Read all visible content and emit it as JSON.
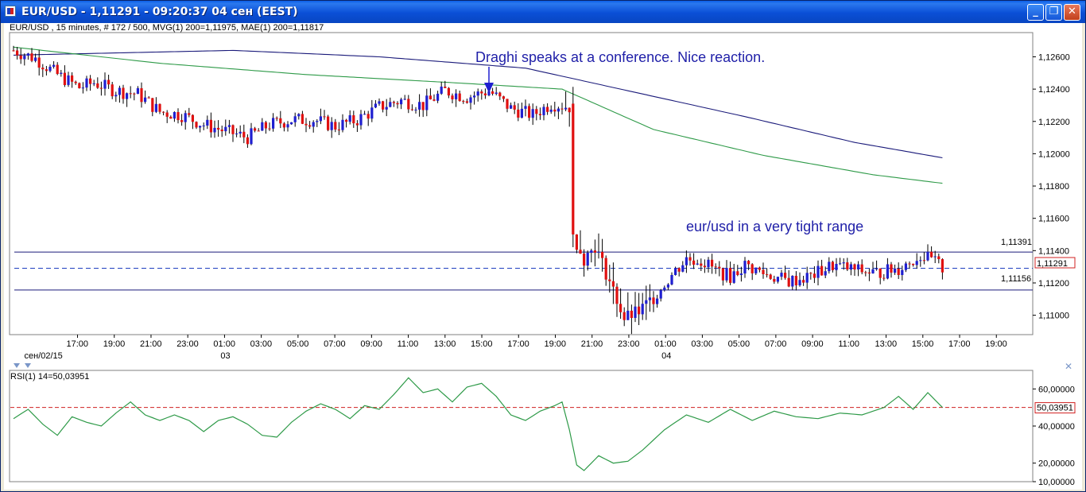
{
  "window": {
    "title": "EUR/USD - 1,11291 - 09:20:37  04 сен (EEST)",
    "buttons": {
      "minimize": "_",
      "maximize": "❐",
      "close": "✕"
    }
  },
  "price_panel": {
    "info": "EUR/USD , 15 minutes, # 172 / 500, MVG(1) 200=1,11975, MAE(1) 200=1,11817",
    "current_price_label": "1,11291",
    "upper_line_label": "1,11391",
    "lower_line_label": "1,11156",
    "annotation_draghi": "Draghi speaks at a conference. Nice reaction.",
    "annotation_range": "eur/usd in a very tight range"
  },
  "rsi_panel": {
    "info": "RSI(1) 14=50,03951",
    "current_label": "50,03951"
  },
  "colors": {
    "bull": "#1f1fd0",
    "bear": "#e01010",
    "mvg": "#1a1a7a",
    "mae": "#2e9a48",
    "rsi": "#2e9a48",
    "hline": "#1a1a7a",
    "current_line": "#1f3fbf",
    "rsi_mid": "#d02020"
  },
  "chart_data": [
    {
      "type": "line",
      "name": "EUR/USD price",
      "price_axis": {
        "ticks": [
          "1,12600",
          "1,12400",
          "1,12200",
          "1,12000",
          "1,11800",
          "1,11600",
          "1,11400",
          "1,11200",
          "1,11000"
        ],
        "tick_values": [
          1.126,
          1.124,
          1.122,
          1.12,
          1.118,
          1.116,
          1.114,
          1.112,
          1.11
        ],
        "range": [
          1.1088,
          1.1275
        ]
      },
      "time_axis": {
        "ticks": [
          "17:00",
          "19:00",
          "21:00",
          "23:00",
          "01:00",
          "03:00",
          "05:00",
          "07:00",
          "09:00",
          "11:00",
          "13:00",
          "15:00",
          "17:00",
          "19:00",
          "21:00",
          "23:00",
          "01:00",
          "03:00",
          "05:00",
          "07:00",
          "09:00",
          "11:00",
          "13:00",
          "15:00",
          "17:00",
          "19:00"
        ],
        "dates": [
          {
            "label": "сен/02/15",
            "tick": 0
          },
          {
            "label": "03",
            "tick": 4
          },
          {
            "label": "04",
            "tick": 16
          }
        ]
      },
      "horizontal_lines": [
        {
          "value": 1.11391,
          "style": "solid"
        },
        {
          "value": 1.11291,
          "style": "dashed"
        },
        {
          "value": 1.11156,
          "style": "solid"
        }
      ],
      "anchors": [
        [
          0,
          1.1264
        ],
        [
          6,
          1.1259
        ],
        [
          12,
          1.1249
        ],
        [
          18,
          1.1241
        ],
        [
          22,
          1.1244
        ],
        [
          28,
          1.1239
        ],
        [
          34,
          1.1237
        ],
        [
          40,
          1.1226
        ],
        [
          46,
          1.1224
        ],
        [
          52,
          1.1218
        ],
        [
          58,
          1.1214
        ],
        [
          64,
          1.121
        ],
        [
          70,
          1.1218
        ],
        [
          76,
          1.1221
        ],
        [
          82,
          1.1221
        ],
        [
          88,
          1.1217
        ],
        [
          94,
          1.1221
        ],
        [
          100,
          1.1229
        ],
        [
          106,
          1.1233
        ],
        [
          112,
          1.123
        ],
        [
          118,
          1.1239
        ],
        [
          124,
          1.1235
        ],
        [
          130,
          1.1239
        ],
        [
          136,
          1.1228
        ],
        [
          142,
          1.1224
        ],
        [
          147,
          1.1231
        ],
        [
          152,
          1.1229
        ],
        [
          153,
          1.115
        ],
        [
          156,
          1.1135
        ],
        [
          159,
          1.1143
        ],
        [
          163,
          1.1121
        ],
        [
          167,
          1.1098
        ],
        [
          171,
          1.1102
        ],
        [
          175,
          1.1111
        ],
        [
          180,
          1.1125
        ],
        [
          184,
          1.1135
        ],
        [
          188,
          1.1134
        ],
        [
          192,
          1.1128
        ],
        [
          196,
          1.1124
        ],
        [
          200,
          1.1131
        ],
        [
          206,
          1.1125
        ],
        [
          212,
          1.1121
        ],
        [
          218,
          1.1124
        ],
        [
          224,
          1.1131
        ],
        [
          230,
          1.1128
        ],
        [
          236,
          1.1126
        ],
        [
          242,
          1.1129
        ],
        [
          248,
          1.1137
        ],
        [
          252,
          1.1133
        ],
        [
          254,
          1.1129
        ]
      ],
      "moving_averages": [
        {
          "name": "MVG(1) 200",
          "points": [
            [
              0,
              1.1261
            ],
            [
              60,
              1.1264
            ],
            [
              100,
              1.126
            ],
            [
              140,
              1.1253
            ],
            [
              170,
              1.1238
            ],
            [
              200,
              1.1223
            ],
            [
              230,
              1.1207
            ],
            [
              254,
              1.11975
            ]
          ]
        },
        {
          "name": "MAE(1) 200",
          "points": [
            [
              0,
              1.1266
            ],
            [
              40,
              1.1256
            ],
            [
              80,
              1.1249
            ],
            [
              120,
              1.1244
            ],
            [
              150,
              1.124
            ],
            [
              175,
              1.1215
            ],
            [
              205,
              1.1199
            ],
            [
              235,
              1.1187
            ],
            [
              254,
              1.11817
            ]
          ]
        }
      ]
    },
    {
      "type": "line",
      "name": "RSI(1) 14",
      "axis": {
        "ticks": [
          "60,00000",
          "40,00000",
          "20,00000",
          "10,00000"
        ],
        "tick_values": [
          60,
          40,
          20,
          10
        ],
        "range": [
          10,
          70
        ]
      },
      "mid_value": 50.03951,
      "points": [
        [
          0,
          44
        ],
        [
          4,
          49
        ],
        [
          8,
          41
        ],
        [
          12,
          35
        ],
        [
          16,
          45
        ],
        [
          20,
          42
        ],
        [
          24,
          40
        ],
        [
          28,
          47
        ],
        [
          32,
          53
        ],
        [
          36,
          46
        ],
        [
          40,
          43
        ],
        [
          44,
          46
        ],
        [
          48,
          43
        ],
        [
          52,
          37
        ],
        [
          56,
          43
        ],
        [
          60,
          45
        ],
        [
          64,
          41
        ],
        [
          68,
          35
        ],
        [
          72,
          34
        ],
        [
          76,
          42
        ],
        [
          80,
          48
        ],
        [
          84,
          52
        ],
        [
          88,
          49
        ],
        [
          92,
          44
        ],
        [
          96,
          51
        ],
        [
          100,
          49
        ],
        [
          104,
          57
        ],
        [
          108,
          66
        ],
        [
          112,
          58
        ],
        [
          116,
          60
        ],
        [
          120,
          53
        ],
        [
          124,
          61
        ],
        [
          128,
          63
        ],
        [
          132,
          56
        ],
        [
          136,
          46
        ],
        [
          140,
          43
        ],
        [
          144,
          48
        ],
        [
          148,
          51
        ],
        [
          150,
          53
        ],
        [
          152,
          38
        ],
        [
          154,
          19
        ],
        [
          156,
          16
        ],
        [
          160,
          24
        ],
        [
          164,
          20
        ],
        [
          168,
          21
        ],
        [
          172,
          27
        ],
        [
          178,
          38
        ],
        [
          184,
          46
        ],
        [
          190,
          42
        ],
        [
          196,
          49
        ],
        [
          202,
          43
        ],
        [
          208,
          48
        ],
        [
          214,
          45
        ],
        [
          220,
          44
        ],
        [
          226,
          47
        ],
        [
          232,
          46
        ],
        [
          238,
          50
        ],
        [
          242,
          56
        ],
        [
          246,
          49
        ],
        [
          250,
          58
        ],
        [
          254,
          50.04
        ]
      ]
    }
  ]
}
